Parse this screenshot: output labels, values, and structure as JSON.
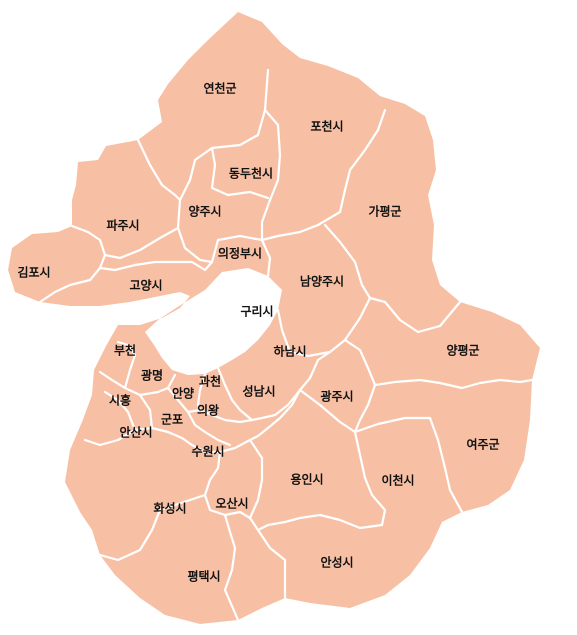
{
  "map": {
    "region_color": "#f7c0a4",
    "border_color": "#ffffff",
    "label_color": "#111111",
    "regions": [
      {
        "id": "yeoncheon",
        "label": "연천군"
      },
      {
        "id": "pocheon",
        "label": "포천시"
      },
      {
        "id": "dongducheon",
        "label": "동두천시"
      },
      {
        "id": "gapyeong",
        "label": "가평군"
      },
      {
        "id": "paju",
        "label": "파주시"
      },
      {
        "id": "yangju",
        "label": "양주시"
      },
      {
        "id": "gimpo",
        "label": "김포시"
      },
      {
        "id": "uijeongbu",
        "label": "의정부시"
      },
      {
        "id": "namyangju",
        "label": "남양주시"
      },
      {
        "id": "goyang",
        "label": "고양시"
      },
      {
        "id": "guri",
        "label": "구리시"
      },
      {
        "id": "bucheon",
        "label": "부천"
      },
      {
        "id": "hanam",
        "label": "하남시"
      },
      {
        "id": "yangpyeong",
        "label": "양평군"
      },
      {
        "id": "gwangmyeong",
        "label": "광명"
      },
      {
        "id": "anyang",
        "label": "안양"
      },
      {
        "id": "gwacheon",
        "label": "과천"
      },
      {
        "id": "seongnam",
        "label": "성남시"
      },
      {
        "id": "siheung",
        "label": "시흥"
      },
      {
        "id": "gwangju",
        "label": "광주시"
      },
      {
        "id": "uiwang",
        "label": "의왕"
      },
      {
        "id": "gunpo",
        "label": "군포"
      },
      {
        "id": "ansan",
        "label": "안산시"
      },
      {
        "id": "yeoju",
        "label": "여주군"
      },
      {
        "id": "suwon",
        "label": "수원시"
      },
      {
        "id": "yongin",
        "label": "용인시"
      },
      {
        "id": "icheon",
        "label": "이천시"
      },
      {
        "id": "osan",
        "label": "오산시"
      },
      {
        "id": "hwaseong",
        "label": "화성시"
      },
      {
        "id": "anseong",
        "label": "안성시"
      },
      {
        "id": "pyeongtaek",
        "label": "평택시"
      }
    ]
  }
}
